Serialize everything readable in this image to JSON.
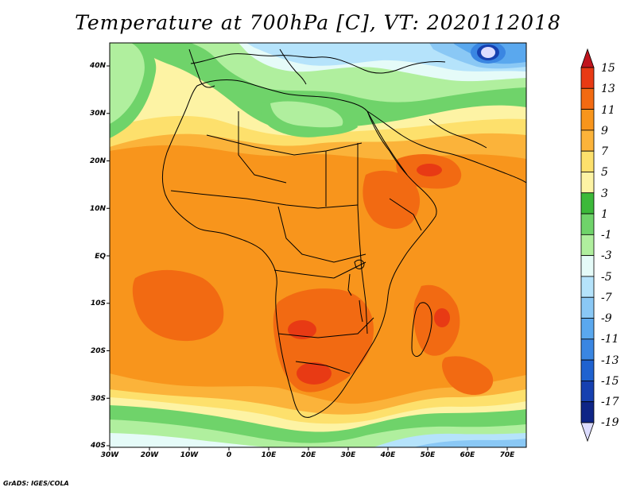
{
  "title": "Temperature at 700hPa [C], VT: 2020112018",
  "credit": "GrADS: IGES/COLA",
  "map": {
    "lat_labels": [
      "40N",
      "30N",
      "20N",
      "10N",
      "EQ",
      "10S",
      "20S",
      "30S",
      "40S"
    ],
    "lon_labels": [
      "30W",
      "20W",
      "10W",
      "0",
      "10E",
      "20E",
      "30E",
      "40E",
      "50E",
      "60E",
      "70E"
    ],
    "lon_range": [
      -30,
      75
    ],
    "lat_range": [
      -40,
      45
    ]
  },
  "colorbar": {
    "labels": [
      "15",
      "13",
      "11",
      "9",
      "7",
      "5",
      "3",
      "1",
      "-1",
      "-3",
      "-5",
      "-7",
      "-9",
      "-11",
      "-13",
      "-15",
      "-17",
      "-19"
    ],
    "colors": {
      "gt15": "#c0141d",
      "c13_15": "#e83a14",
      "c11_13": "#f26a12",
      "c9_11": "#f8951c",
      "c7_9": "#fbb33a",
      "c5_7": "#fde06c",
      "c3_5": "#fdf3a4",
      "c1_3": "#3cb93a",
      "cm1_1": "#6fd36a",
      "cm3_m1": "#b0ef9e",
      "cm5_m3": "#e5fbf8",
      "cm7_m5": "#b5e3fb",
      "cm9_m7": "#8ac8f5",
      "cm11_m9": "#5aa8ee",
      "cm13_m11": "#3a86e2",
      "cm15_m13": "#1f62d0",
      "cm17_m15": "#1640b0",
      "cm19_m17": "#0e2586",
      "lt_m19": "#dcdcff"
    }
  }
}
